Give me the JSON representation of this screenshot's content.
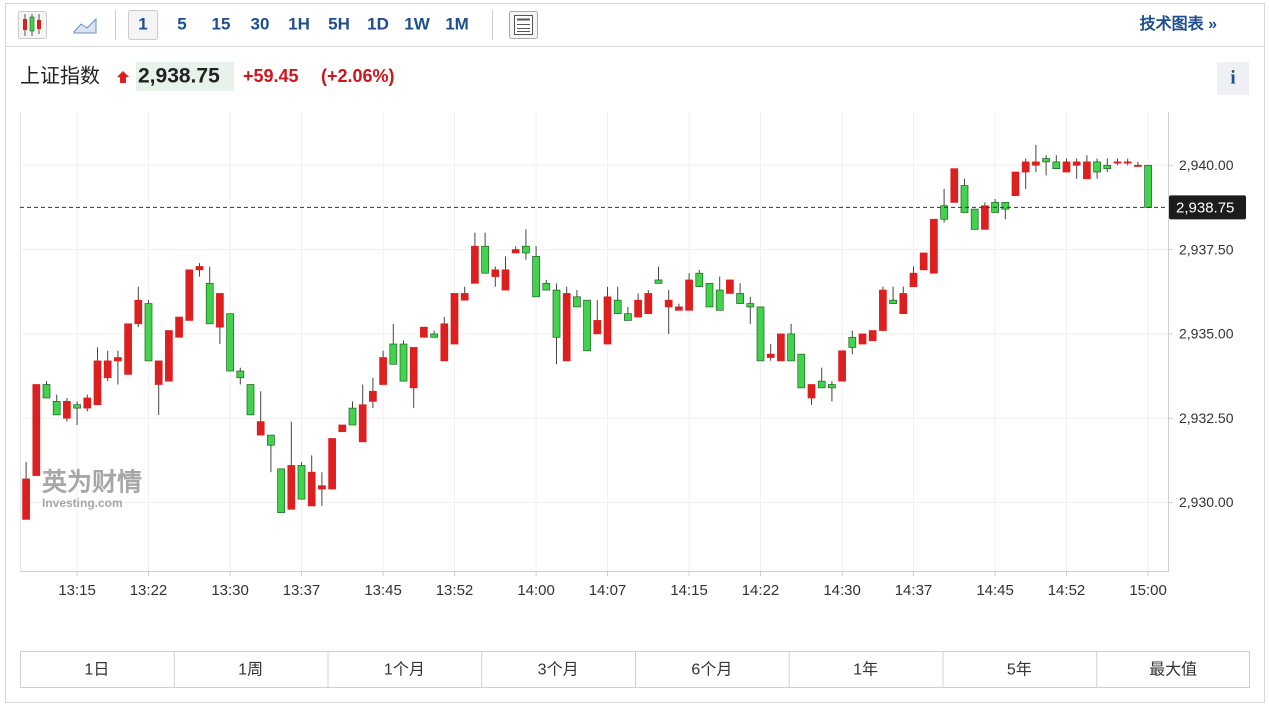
{
  "toolbar": {
    "intervals": [
      "1",
      "5",
      "15",
      "30",
      "1H",
      "5H",
      "1D",
      "1W",
      "1M"
    ],
    "tech_link": "技术图表 »"
  },
  "header": {
    "title": "上证指数",
    "price": "2,938.75",
    "change": "+59.45",
    "change_pct": "(+2.06%)",
    "info": "i"
  },
  "watermark": {
    "brand": "英为财情",
    "site": "Investing.com"
  },
  "range_buttons": [
    "1日",
    "1周",
    "1个月",
    "3个月",
    "6个月",
    "1年",
    "5年",
    "最大值"
  ],
  "chart_data": {
    "type": "candlestick",
    "up_color": "#dd1f1f",
    "down_color": "#41d34b",
    "down_border": "#1f5f24",
    "grid": true,
    "x": [
      "13:10",
      "13:11",
      "13:12",
      "13:13",
      "13:14",
      "13:15",
      "13:16",
      "13:17",
      "13:18",
      "13:19",
      "13:20",
      "13:21",
      "13:22",
      "13:23",
      "13:24",
      "13:25",
      "13:26",
      "13:27",
      "13:28",
      "13:29",
      "13:30",
      "13:31",
      "13:32",
      "13:33",
      "13:34",
      "13:35",
      "13:36",
      "13:37",
      "13:38",
      "13:39",
      "13:40",
      "13:41",
      "13:42",
      "13:43",
      "13:44",
      "13:45",
      "13:46",
      "13:47",
      "13:48",
      "13:49",
      "13:50",
      "13:51",
      "13:52",
      "13:53",
      "13:54",
      "13:55",
      "13:56",
      "13:57",
      "13:58",
      "13:59",
      "14:00",
      "14:01",
      "14:02",
      "14:03",
      "14:04",
      "14:05",
      "14:06",
      "14:07",
      "14:08",
      "14:09",
      "14:10",
      "14:11",
      "14:12",
      "14:13",
      "14:14",
      "14:15",
      "14:16",
      "14:17",
      "14:18",
      "14:19",
      "14:20",
      "14:21",
      "14:22",
      "14:23",
      "14:24",
      "14:25",
      "14:26",
      "14:27",
      "14:28",
      "14:29",
      "14:30",
      "14:31",
      "14:32",
      "14:33",
      "14:34",
      "14:35",
      "14:36",
      "14:37",
      "14:38",
      "14:39",
      "14:40",
      "14:41",
      "14:42",
      "14:43",
      "14:44",
      "14:45",
      "14:46",
      "14:47",
      "14:48",
      "14:49",
      "14:50",
      "14:51",
      "14:52",
      "14:53",
      "14:54",
      "14:55",
      "14:56",
      "14:57",
      "14:58",
      "14:59",
      "15:00"
    ],
    "open": [
      2929.5,
      2930.8,
      2933.5,
      2933.0,
      2932.5,
      2932.9,
      2932.8,
      2932.9,
      2933.7,
      2934.2,
      2933.8,
      2935.3,
      2935.9,
      2933.5,
      2933.6,
      2934.9,
      2935.4,
      2936.9,
      2936.5,
      2935.2,
      2935.6,
      2933.9,
      2933.5,
      2932.0,
      2932.0,
      2931.0,
      2929.8,
      2931.1,
      2929.9,
      2930.4,
      2930.4,
      2932.1,
      2932.8,
      2931.8,
      2933.0,
      2933.5,
      2934.7,
      2934.7,
      2933.4,
      2934.9,
      2935.0,
      2934.2,
      2934.7,
      2936.0,
      2936.5,
      2937.6,
      2936.7,
      2936.3,
      2937.4,
      2937.6,
      2937.3,
      2936.5,
      2936.3,
      2934.2,
      2936.1,
      2936.0,
      2935.0,
      2934.7,
      2936.0,
      2935.6,
      2935.5,
      2935.6,
      2936.6,
      2935.8,
      2935.7,
      2935.7,
      2936.8,
      2936.5,
      2936.3,
      2936.2,
      2936.2,
      2935.9,
      2935.8,
      2934.3,
      2934.2,
      2935.0,
      2934.4,
      2933.1,
      2933.6,
      2933.5,
      2933.6,
      2934.9,
      2934.7,
      2934.8,
      2935.1,
      2936.0,
      2935.6,
      2936.4,
      2936.9,
      2936.8,
      2938.8,
      2938.9,
      2939.4,
      2938.7,
      2938.1,
      2938.9,
      2938.9,
      2939.1,
      2939.8,
      2940.0,
      2940.2,
      2940.1,
      2939.8,
      2940.0,
      2939.6,
      2940.1,
      2940.0,
      2940.1,
      2940.1,
      2940.0,
      2940.0
    ],
    "high": [
      2931.2,
      2933.5,
      2933.6,
      2933.2,
      2933.1,
      2933.0,
      2933.2,
      2934.6,
      2934.5,
      2934.5,
      2935.3,
      2936.4,
      2936.0,
      2934.2,
      2935.1,
      2935.5,
      2936.9,
      2937.1,
      2937.0,
      2936.2,
      2935.6,
      2934.0,
      2933.5,
      2933.3,
      2932.0,
      2931.0,
      2932.4,
      2931.2,
      2931.4,
      2930.9,
      2931.9,
      2932.3,
      2933.0,
      2933.5,
      2933.7,
      2934.5,
      2935.3,
      2934.8,
      2934.6,
      2935.2,
      2935.1,
      2935.5,
      2936.2,
      2936.4,
      2938.0,
      2938.0,
      2937.0,
      2937.3,
      2937.6,
      2938.1,
      2937.6,
      2936.6,
      2936.5,
      2936.4,
      2936.3,
      2936.0,
      2936.0,
      2936.4,
      2936.4,
      2935.8,
      2936.2,
      2936.3,
      2937.0,
      2936.3,
      2935.9,
      2936.8,
      2936.9,
      2936.5,
      2936.7,
      2936.6,
      2936.5,
      2936.1,
      2935.8,
      2934.7,
      2935.0,
      2935.3,
      2934.4,
      2933.5,
      2934.0,
      2933.6,
      2934.5,
      2935.1,
      2935.0,
      2935.1,
      2936.4,
      2936.4,
      2936.4,
      2937.0,
      2937.4,
      2938.4,
      2939.3,
      2939.9,
      2939.6,
      2938.7,
      2938.9,
      2939.0,
      2938.9,
      2939.8,
      2940.2,
      2940.6,
      2940.3,
      2940.3,
      2940.2,
      2940.2,
      2940.3,
      2940.2,
      2940.2,
      2940.2,
      2940.2,
      2940.1,
      2940.0
    ],
    "low": [
      2929.5,
      2930.8,
      2933.1,
      2932.6,
      2932.4,
      2932.3,
      2932.7,
      2932.9,
      2933.6,
      2933.5,
      2933.8,
      2935.2,
      2934.2,
      2932.6,
      2933.6,
      2934.9,
      2935.4,
      2936.7,
      2935.3,
      2934.7,
      2933.9,
      2933.5,
      2932.6,
      2932.0,
      2930.9,
      2929.7,
      2929.8,
      2930.1,
      2929.9,
      2929.9,
      2930.4,
      2932.1,
      2932.3,
      2931.8,
      2932.8,
      2933.5,
      2934.1,
      2933.6,
      2932.8,
      2934.9,
      2934.9,
      2934.2,
      2934.7,
      2936.0,
      2936.5,
      2936.8,
      2936.4,
      2936.3,
      2937.4,
      2937.2,
      2936.1,
      2936.3,
      2934.1,
      2934.2,
      2935.8,
      2934.5,
      2935.0,
      2934.7,
      2935.6,
      2935.4,
      2935.5,
      2935.6,
      2936.5,
      2935.0,
      2935.7,
      2935.7,
      2936.4,
      2935.8,
      2935.7,
      2936.2,
      2935.9,
      2935.3,
      2934.2,
      2934.2,
      2934.2,
      2934.2,
      2933.4,
      2932.9,
      2933.4,
      2933.0,
      2933.6,
      2934.4,
      2934.7,
      2934.8,
      2935.1,
      2935.9,
      2935.6,
      2936.4,
      2936.9,
      2936.8,
      2938.3,
      2938.9,
      2938.6,
      2938.1,
      2938.1,
      2938.6,
      2938.4,
      2939.1,
      2939.3,
      2939.8,
      2939.7,
      2939.9,
      2939.8,
      2939.6,
      2939.6,
      2939.6,
      2939.8,
      2940.0,
      2940.0,
      2940.0,
      2938.75
    ],
    "close": [
      2930.7,
      2933.5,
      2933.1,
      2932.6,
      2933.0,
      2932.8,
      2933.1,
      2934.2,
      2934.2,
      2934.3,
      2935.3,
      2936.0,
      2934.2,
      2934.2,
      2935.1,
      2935.5,
      2936.9,
      2937.0,
      2935.3,
      2936.2,
      2933.9,
      2933.7,
      2932.6,
      2932.4,
      2931.7,
      2929.7,
      2931.1,
      2930.1,
      2930.9,
      2930.5,
      2931.9,
      2932.3,
      2932.3,
      2932.9,
      2933.3,
      2934.3,
      2934.1,
      2933.6,
      2934.6,
      2935.2,
      2934.9,
      2935.3,
      2936.2,
      2936.2,
      2937.6,
      2936.8,
      2936.9,
      2936.9,
      2937.5,
      2937.4,
      2936.1,
      2936.3,
      2934.9,
      2936.2,
      2935.8,
      2934.5,
      2935.4,
      2936.1,
      2935.6,
      2935.4,
      2936.0,
      2936.2,
      2936.5,
      2936.0,
      2935.8,
      2936.6,
      2936.4,
      2935.8,
      2935.7,
      2936.6,
      2935.9,
      2935.8,
      2934.2,
      2934.4,
      2935.0,
      2934.2,
      2933.4,
      2933.5,
      2933.4,
      2933.4,
      2934.5,
      2934.6,
      2935.0,
      2935.1,
      2936.3,
      2935.9,
      2936.2,
      2936.8,
      2937.4,
      2938.4,
      2938.4,
      2939.9,
      2938.6,
      2938.1,
      2938.8,
      2938.6,
      2938.7,
      2939.8,
      2940.1,
      2940.1,
      2940.1,
      2939.9,
      2940.1,
      2940.1,
      2940.1,
      2939.8,
      2939.9,
      2940.1,
      2940.1,
      2940.0,
      2938.75
    ],
    "xticks": [
      "13:15",
      "13:22",
      "13:30",
      "13:37",
      "13:45",
      "13:52",
      "14:00",
      "14:07",
      "14:15",
      "14:22",
      "14:30",
      "14:37",
      "14:45",
      "14:52",
      "15:00"
    ],
    "ylim": [
      2928.0,
      2941.55
    ],
    "yticks": [
      {
        "value": 2930,
        "label": "2,930.00"
      },
      {
        "value": 2932.5,
        "label": "2,932.50"
      },
      {
        "value": 2935,
        "label": "2,935.00"
      },
      {
        "value": 2937.5,
        "label": "2,937.50"
      },
      {
        "value": 2940,
        "label": "2,940.00"
      }
    ],
    "last_price": {
      "value": 2938.75,
      "label": "2,938.75"
    }
  }
}
